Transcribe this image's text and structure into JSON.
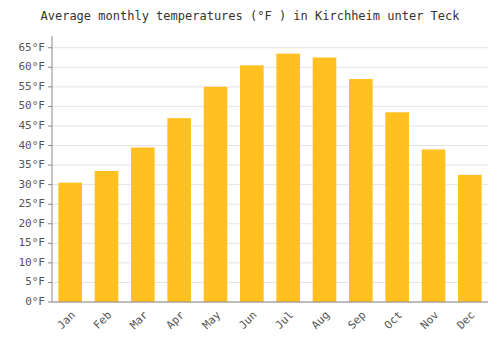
{
  "chart_data": {
    "type": "bar",
    "title": "Average monthly temperatures (°F ) in Kirchheim unter Teck",
    "categories": [
      "Jan",
      "Feb",
      "Mar",
      "Apr",
      "May",
      "Jun",
      "Jul",
      "Aug",
      "Sep",
      "Oct",
      "Nov",
      "Dec"
    ],
    "values": [
      30.5,
      33.5,
      39.5,
      47.0,
      55.0,
      60.5,
      63.5,
      62.5,
      57.0,
      48.5,
      39.0,
      32.5
    ],
    "color": "#FFC020",
    "ylim": [
      0,
      68
    ],
    "yticks": [
      {
        "value": 0,
        "label": "0°F"
      },
      {
        "value": 5,
        "label": "5°F"
      },
      {
        "value": 10,
        "label": "10°F"
      },
      {
        "value": 15,
        "label": "15°F"
      },
      {
        "value": 20,
        "label": "20°F"
      },
      {
        "value": 25,
        "label": "25°F"
      },
      {
        "value": 30,
        "label": "30°F"
      },
      {
        "value": 35,
        "label": "35°F"
      },
      {
        "value": 40,
        "label": "40°F"
      },
      {
        "value": 45,
        "label": "45°F"
      },
      {
        "value": 50,
        "label": "50°F"
      },
      {
        "value": 55,
        "label": "55°F"
      },
      {
        "value": 60,
        "label": "60°F"
      },
      {
        "value": 65,
        "label": "65°F"
      }
    ],
    "grid": true
  }
}
